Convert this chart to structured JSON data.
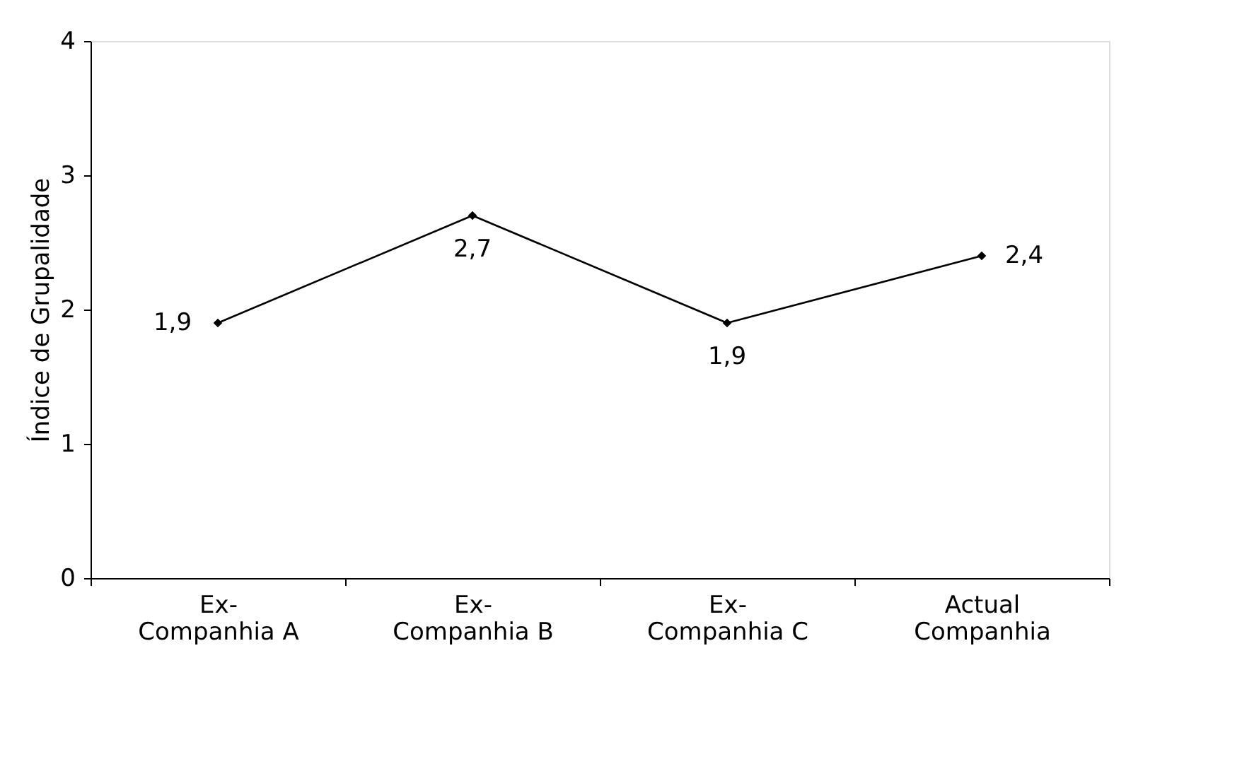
{
  "chart_data": {
    "type": "line",
    "ylabel": "Índice de Grupalidade",
    "categories": [
      "Ex- Companhia A",
      "Ex- Companhia B",
      "Ex- Companhia C",
      "Actual Companhia"
    ],
    "series": [
      {
        "color": "#000000",
        "values": [
          1.9,
          2.7,
          1.9,
          2.4
        ],
        "value_labels": [
          "1,9",
          "2,7",
          "1,9",
          "2,4"
        ]
      }
    ],
    "ylim": [
      0,
      4
    ],
    "yticks": [
      0,
      1,
      2,
      3,
      4
    ],
    "grid": false,
    "marker": "diamond",
    "line_style": "solid"
  }
}
